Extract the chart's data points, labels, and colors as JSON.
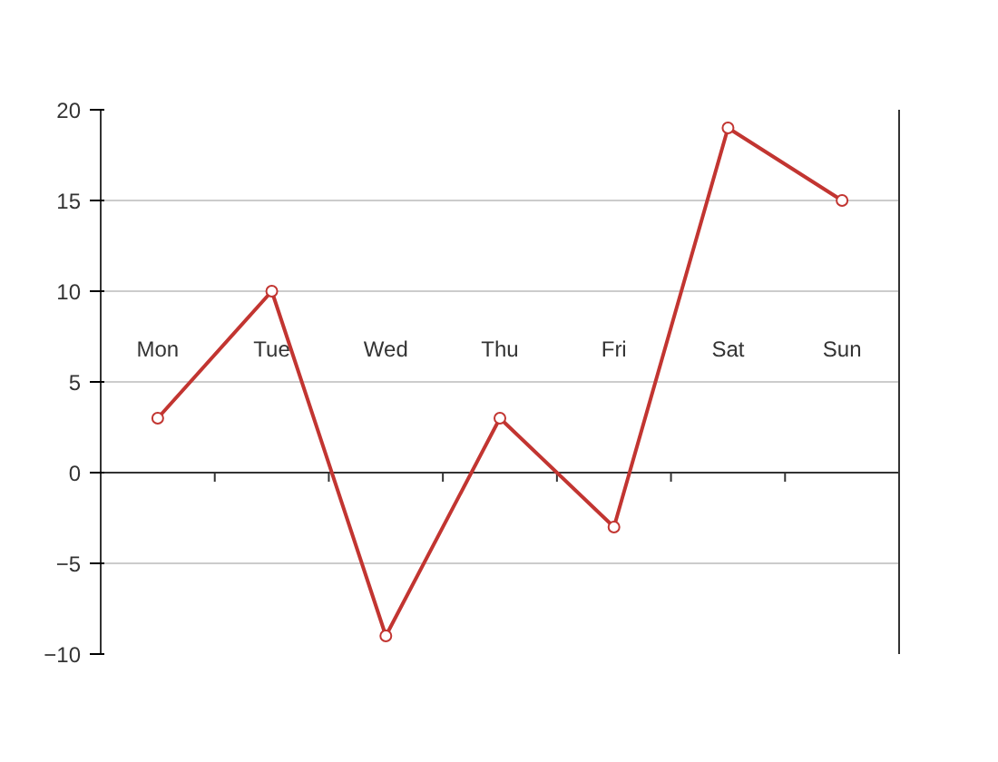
{
  "chart_data": {
    "type": "line",
    "categories": [
      "Mon",
      "Tue",
      "Wed",
      "Thu",
      "Fri",
      "Sat",
      "Sun"
    ],
    "series": [
      {
        "color": "#c23531",
        "values": [
          3,
          10,
          -9,
          3,
          -3,
          19,
          15
        ]
      }
    ],
    "ylim": [
      -10,
      20
    ],
    "yticks": [
      -10,
      -5,
      0,
      5,
      10,
      15,
      20
    ],
    "grid": "y",
    "marker": "circle",
    "line_style": "solid"
  }
}
